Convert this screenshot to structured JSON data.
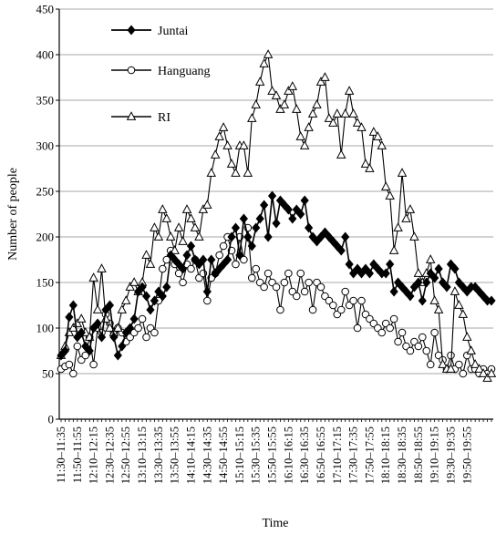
{
  "chart_data": {
    "type": "line",
    "title": "",
    "xlabel": "Time",
    "ylabel": "Number of people",
    "ylim": [
      0,
      450
    ],
    "yticks": [
      0,
      50,
      100,
      150,
      200,
      250,
      300,
      350,
      400,
      450
    ],
    "grid": "horizontal",
    "legend_position": "top-left",
    "x_start": "11:30",
    "x_step_minutes": 5,
    "x_tick_labels": [
      "11:30–11:35",
      "11:50–11:55",
      "12:10–12:15",
      "12:30–12:35",
      "12:50–12:55",
      "13:10–13:15",
      "13:30–13:35",
      "13:50–13:55",
      "14:10–14:15",
      "14:30–14:35",
      "14:50–14:55",
      "15:10–15:15",
      "15:30–15:35",
      "15:50–15:55",
      "16:10–16:15",
      "16:30–16:35",
      "16:50–16:55",
      "17:10–17:15",
      "17:30–17:35",
      "17:50–17:55",
      "18:10–18:15",
      "18:30–18:35",
      "18:50–18:55",
      "19:10–19:15",
      "19:30–19:35",
      "19:50–19:55"
    ],
    "series": [
      {
        "name": "Juntai",
        "marker": "diamond",
        "values": [
          70,
          75,
          112,
          125,
          90,
          95,
          80,
          75,
          100,
          105,
          90,
          120,
          125,
          90,
          70,
          80,
          95,
          100,
          110,
          140,
          145,
          135,
          120,
          130,
          140,
          135,
          145,
          180,
          175,
          170,
          165,
          180,
          190,
          175,
          170,
          175,
          140,
          175,
          160,
          165,
          170,
          175,
          200,
          210,
          180,
          220,
          200,
          190,
          210,
          220,
          235,
          200,
          245,
          215,
          240,
          235,
          230,
          220,
          230,
          225,
          240,
          210,
          200,
          195,
          200,
          205,
          200,
          195,
          190,
          185,
          200,
          170,
          160,
          165,
          160,
          165,
          160,
          170,
          165,
          160,
          160,
          170,
          140,
          150,
          145,
          140,
          135,
          145,
          150,
          130,
          150,
          160,
          155,
          165,
          150,
          145,
          170,
          165,
          150,
          145,
          140,
          145,
          145,
          140,
          135,
          130,
          130
        ]
      },
      {
        "name": "Hanguang",
        "marker": "circle",
        "values": [
          55,
          58,
          60,
          50,
          80,
          65,
          70,
          90,
          60,
          100,
          95,
          115,
          105,
          95,
          100,
          95,
          85,
          90,
          95,
          100,
          110,
          90,
          100,
          95,
          130,
          165,
          175,
          185,
          170,
          160,
          150,
          170,
          165,
          175,
          155,
          160,
          130,
          155,
          160,
          180,
          190,
          200,
          185,
          170,
          200,
          175,
          210,
          155,
          165,
          150,
          145,
          160,
          150,
          145,
          120,
          150,
          160,
          140,
          135,
          160,
          140,
          150,
          120,
          150,
          145,
          135,
          130,
          125,
          115,
          120,
          140,
          125,
          130,
          100,
          130,
          115,
          110,
          105,
          100,
          95,
          105,
          100,
          110,
          85,
          95,
          80,
          75,
          85,
          80,
          90,
          75,
          60,
          95,
          70,
          65,
          55,
          70,
          55,
          60,
          50,
          70,
          55,
          55,
          50,
          55,
          50,
          55
        ]
      },
      {
        "name": "RI",
        "marker": "triangle",
        "values": [
          70,
          80,
          95,
          100,
          105,
          110,
          95,
          90,
          155,
          120,
          165,
          110,
          100,
          95,
          100,
          120,
          130,
          145,
          150,
          140,
          150,
          180,
          170,
          210,
          200,
          230,
          220,
          200,
          185,
          210,
          195,
          230,
          220,
          210,
          200,
          230,
          235,
          270,
          290,
          310,
          320,
          300,
          280,
          270,
          300,
          300,
          270,
          330,
          345,
          370,
          390,
          400,
          360,
          355,
          340,
          345,
          360,
          365,
          340,
          310,
          300,
          320,
          335,
          345,
          370,
          375,
          330,
          325,
          335,
          290,
          335,
          360,
          335,
          325,
          320,
          280,
          275,
          315,
          310,
          300,
          255,
          245,
          185,
          210,
          270,
          220,
          230,
          200,
          160,
          150,
          160,
          175,
          130,
          120,
          60,
          55,
          55,
          140,
          125,
          115,
          90,
          75,
          60,
          55,
          50,
          45,
          50
        ]
      }
    ]
  }
}
